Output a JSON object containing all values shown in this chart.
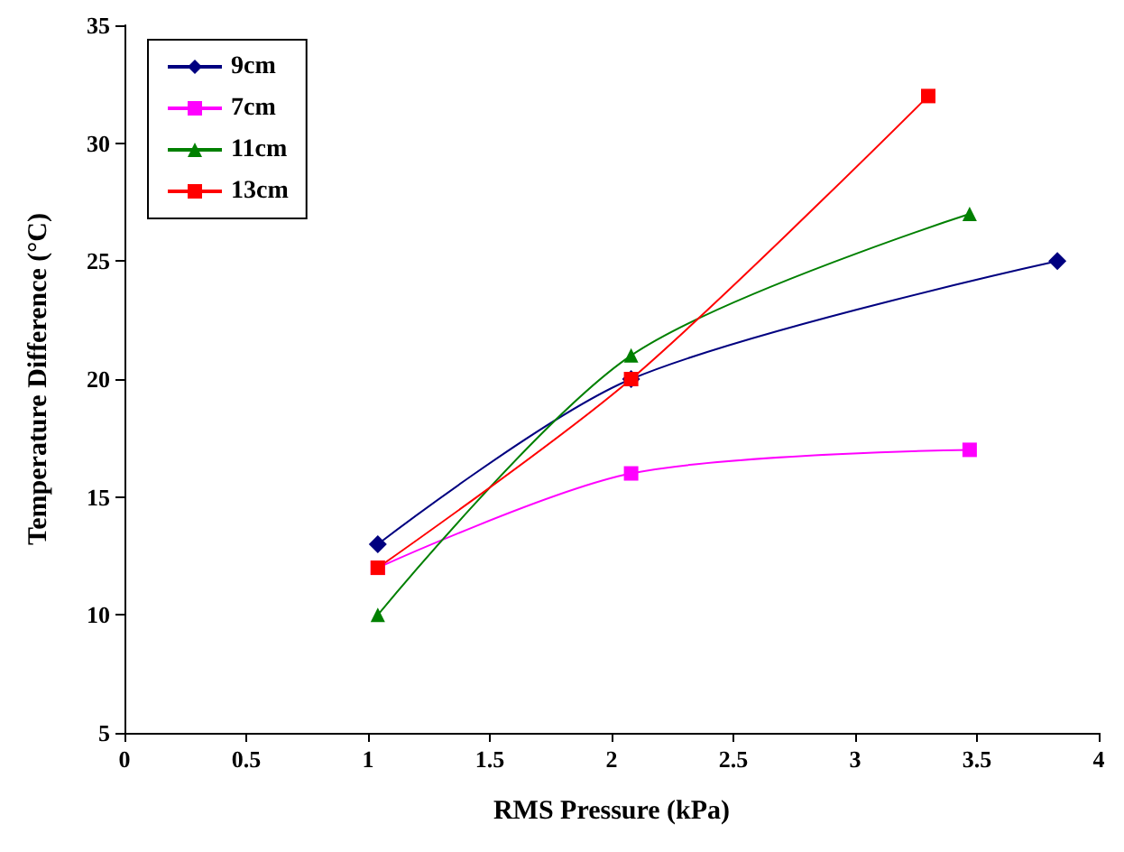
{
  "chart_data": {
    "type": "line",
    "xlabel": "RMS Pressure (kPa)",
    "ylabel": "Temperature Difference (°C)",
    "xlim": [
      0,
      4
    ],
    "xticks": [
      0,
      0.5,
      1,
      1.5,
      2,
      2.5,
      3,
      3.5,
      4
    ],
    "ylim": [
      5,
      35
    ],
    "yticks": [
      5,
      10,
      15,
      20,
      25,
      30,
      35
    ],
    "grid": false,
    "legend": "top left",
    "line_style": "solid",
    "series": [
      {
        "name": "9cm",
        "color": "#000080",
        "marker": "diamond",
        "x": [
          1.04,
          2.08,
          3.83
        ],
        "values": [
          13,
          20,
          25
        ]
      },
      {
        "name": "7cm",
        "color": "#ff00ff",
        "marker": "square",
        "x": [
          1.04,
          2.08,
          3.47
        ],
        "values": [
          12,
          16,
          17
        ]
      },
      {
        "name": "11cm",
        "color": "#008000",
        "marker": "triangle",
        "x": [
          1.04,
          2.08,
          3.47
        ],
        "values": [
          10,
          21,
          27
        ]
      },
      {
        "name": "13cm",
        "color": "#ff0000",
        "marker": "square",
        "x": [
          1.04,
          2.08,
          3.3
        ],
        "values": [
          12,
          20,
          32
        ]
      }
    ]
  }
}
